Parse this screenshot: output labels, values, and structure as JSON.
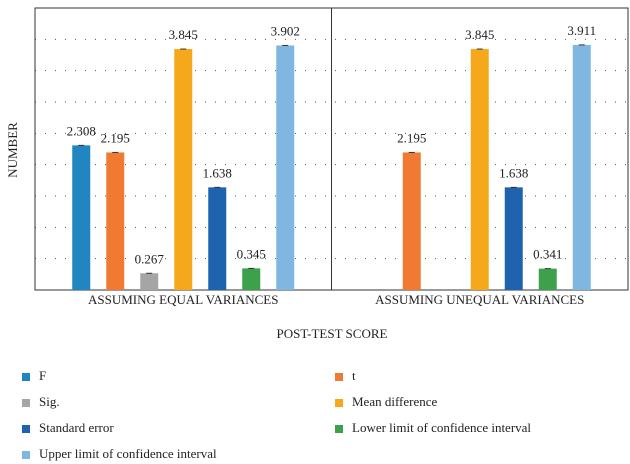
{
  "chart_data": {
    "type": "bar",
    "y_label": "NUMBER",
    "x_label": "POST-TEST SCORE",
    "categories": [
      "ASSUMING EQUAL VARIANCES",
      "ASSUMING UNEQUAL VARIANCES"
    ],
    "series": [
      {
        "name": "F",
        "color": "#2185c0",
        "values": [
          2.308,
          null
        ]
      },
      {
        "name": "t",
        "color": "#f07a32",
        "values": [
          2.195,
          2.195
        ]
      },
      {
        "name": "Sig.",
        "color": "#a5a5a5",
        "values": [
          0.267,
          null
        ]
      },
      {
        "name": "Mean difference",
        "color": "#f5a81c",
        "values": [
          3.845,
          3.845
        ]
      },
      {
        "name": "Standard error",
        "color": "#1f63ae",
        "values": [
          1.638,
          1.638
        ]
      },
      {
        "name": "Lower limit of confidence interval",
        "color": "#3da04a",
        "values": [
          0.345,
          0.341
        ]
      },
      {
        "name": "Upper limit of confidence interval",
        "color": "#7fb7e0",
        "values": [
          3.902,
          3.911
        ]
      }
    ],
    "ylim": [
      0,
      4.5
    ],
    "yticks": [
      0,
      0.5,
      1,
      1.5,
      2,
      2.5,
      3,
      3.5,
      4,
      4.5
    ],
    "grid": true,
    "legend": "bottom"
  }
}
